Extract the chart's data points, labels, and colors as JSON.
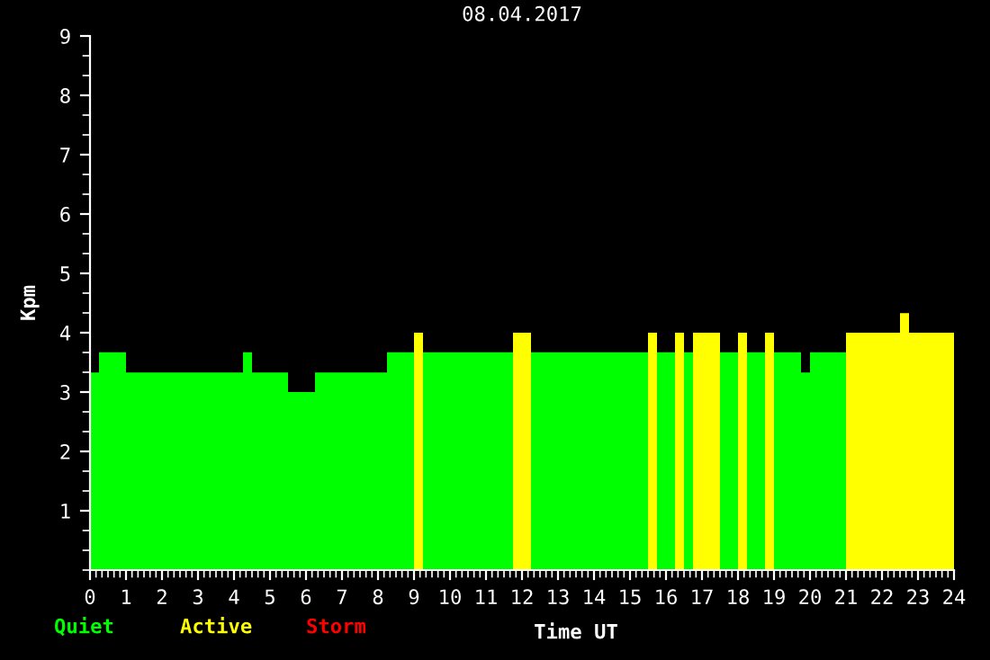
{
  "chart_data": {
    "type": "histogram",
    "title": "08.04.2017",
    "xlabel": "Time UT",
    "ylabel": "Kpm",
    "bins": [
      0,
      0.25,
      1,
      4.25,
      4.5,
      5.5,
      6.25,
      8.25,
      9,
      9.25,
      11.75,
      12.25,
      15.5,
      15.75,
      16.25,
      16.5,
      16.75,
      17.5,
      18,
      18.25,
      18.75,
      19,
      19.75,
      20,
      21,
      22.5,
      22.75,
      24
    ],
    "series": [
      {
        "name": "Quiet",
        "color": "#00ff00",
        "values": [
          3.33,
          3.67,
          3.33,
          3.67,
          3.33,
          3,
          3.33,
          3.67,
          null,
          3.67,
          null,
          3.67,
          null,
          3.67,
          null,
          3.67,
          null,
          3.67,
          null,
          3.67,
          null,
          3.67,
          3.33,
          3.67,
          null,
          null,
          null
        ]
      },
      {
        "name": "Active",
        "color": "#ffff00",
        "values": [
          null,
          null,
          null,
          null,
          null,
          null,
          null,
          null,
          4,
          null,
          4,
          null,
          4,
          null,
          4,
          null,
          4,
          null,
          4,
          null,
          4,
          null,
          null,
          null,
          4,
          4.33,
          4
        ]
      }
    ],
    "annotations": [
      "Storm"
    ],
    "xlim": [
      0,
      24
    ],
    "xticks": [
      0,
      1,
      2,
      3,
      4,
      5,
      6,
      7,
      8,
      9,
      10,
      11,
      12,
      13,
      14,
      15,
      16,
      17,
      18,
      19,
      20,
      21,
      22,
      23,
      24
    ],
    "ylim": [
      0,
      9
    ],
    "yticks": [
      1,
      2,
      3,
      4,
      5,
      6,
      7,
      8,
      9
    ],
    "legend": "bottom"
  }
}
